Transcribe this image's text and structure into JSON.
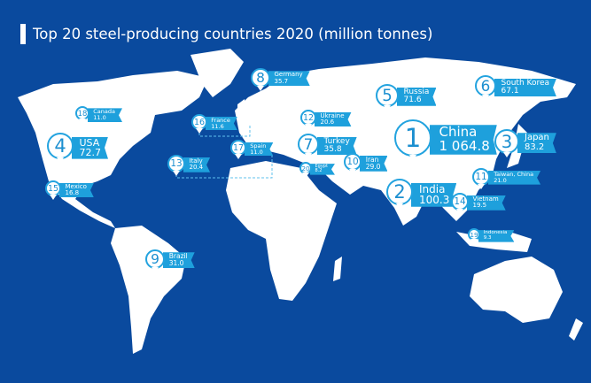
{
  "title": "Top 20 steel-producing countries 2020 (million tonnes)",
  "colors": {
    "background": "#0a4a9e",
    "land": "#ffffff",
    "label": "#1ea0dc",
    "rank_text": "#1c8fd0"
  },
  "countries": [
    {
      "rank": "1",
      "name": "China",
      "value": "1 064.8"
    },
    {
      "rank": "2",
      "name": "India",
      "value": "100.3"
    },
    {
      "rank": "3",
      "name": "Japan",
      "value": "83.2"
    },
    {
      "rank": "4",
      "name": "USA",
      "value": "72.7"
    },
    {
      "rank": "5",
      "name": "Russia",
      "value": "71.6"
    },
    {
      "rank": "6",
      "name": "South Korea",
      "value": "67.1"
    },
    {
      "rank": "7",
      "name": "Turkey",
      "value": "35.8"
    },
    {
      "rank": "8",
      "name": "Germany",
      "value": "35.7"
    },
    {
      "rank": "9",
      "name": "Brazil",
      "value": "31.0"
    },
    {
      "rank": "10",
      "name": "Iran",
      "value": "29.0"
    },
    {
      "rank": "11",
      "name": "Taiwan, China",
      "value": "21.0"
    },
    {
      "rank": "12",
      "name": "Ukraine",
      "value": "20.6"
    },
    {
      "rank": "13",
      "name": "Italy",
      "value": "20.4"
    },
    {
      "rank": "14",
      "name": "Vietnam",
      "value": "19.5"
    },
    {
      "rank": "15",
      "name": "Mexico",
      "value": "16.8"
    },
    {
      "rank": "16",
      "name": "France",
      "value": "11.6"
    },
    {
      "rank": "17",
      "name": "Spain",
      "value": "11.0"
    },
    {
      "rank": "18",
      "name": "Canada",
      "value": "11.0"
    },
    {
      "rank": "19",
      "name": "Indonesia",
      "value": "9.3"
    },
    {
      "rank": "20",
      "name": "Egypt",
      "value": "8.2"
    }
  ]
}
